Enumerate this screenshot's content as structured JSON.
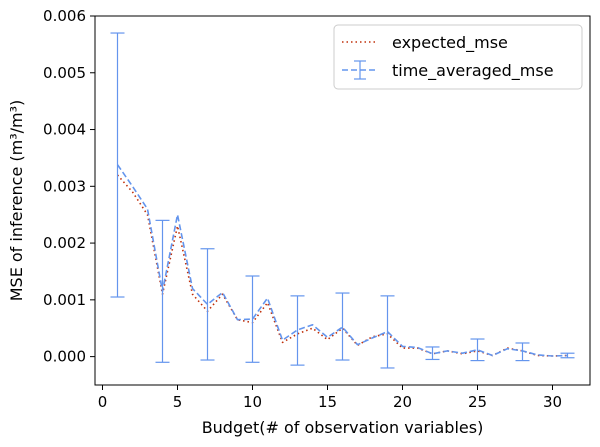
{
  "chart_data": {
    "type": "line",
    "xlabel": "Budget(# of observation variables)",
    "ylabel": "MSE of inference (m³/m³)",
    "xlim": [
      -0.5,
      32.5
    ],
    "ylim": [
      -0.0005,
      0.006
    ],
    "x_ticks": [
      0,
      5,
      10,
      15,
      20,
      25,
      30
    ],
    "x_tick_labels": [
      "0",
      "5",
      "10",
      "15",
      "20",
      "25",
      "30"
    ],
    "y_ticks": [
      0.0,
      0.001,
      0.002,
      0.003,
      0.004,
      0.005,
      0.006
    ],
    "y_tick_labels": [
      "0.000",
      "0.001",
      "0.002",
      "0.003",
      "0.004",
      "0.005",
      "0.006"
    ],
    "grid": false,
    "legend_position": "top-right",
    "x": [
      1,
      2,
      3,
      4,
      5,
      6,
      7,
      8,
      9,
      10,
      11,
      12,
      13,
      14,
      15,
      16,
      17,
      18,
      19,
      20,
      21,
      22,
      23,
      24,
      25,
      26,
      27,
      28,
      29,
      30,
      31
    ],
    "series": [
      {
        "name": "expected_mse",
        "style": "dotted",
        "color": "#c0300a",
        "values": [
          0.0032,
          0.0029,
          0.0025,
          0.0011,
          0.0023,
          0.0011,
          0.0008,
          0.0011,
          0.00065,
          0.0006,
          0.00095,
          0.00025,
          0.0004,
          0.0005,
          0.0003,
          0.0005,
          0.0002,
          0.00035,
          0.0004,
          0.00015,
          0.00015,
          5e-05,
          0.0001,
          5e-05,
          0.0001,
          2e-05,
          0.00015,
          0.0001,
          2e-05,
          1e-05,
          2e-05
        ]
      },
      {
        "name": "time_averaged_mse",
        "style": "dashed",
        "color": "#6495ed",
        "values": [
          0.00338,
          0.003,
          0.0026,
          0.00115,
          0.0025,
          0.0012,
          0.00092,
          0.00113,
          0.00065,
          0.00066,
          0.00103,
          0.00029,
          0.00047,
          0.00056,
          0.00034,
          0.00052,
          0.00021,
          0.00033,
          0.00044,
          0.00018,
          0.00016,
          5e-05,
          0.0001,
          6e-05,
          0.00012,
          2e-05,
          0.00014,
          0.0001,
          3e-05,
          1e-05,
          2e-05
        ],
        "error_bars": [
          {
            "x": 1,
            "low": 0.00105,
            "high": 0.0057
          },
          {
            "x": 4,
            "low": -0.0001,
            "high": 0.0024
          },
          {
            "x": 7,
            "low": -6e-05,
            "high": 0.0019
          },
          {
            "x": 10,
            "low": -0.0001,
            "high": 0.00142
          },
          {
            "x": 13,
            "low": -0.00015,
            "high": 0.00107
          },
          {
            "x": 16,
            "low": -6e-05,
            "high": 0.00112
          },
          {
            "x": 19,
            "low": -0.0002,
            "high": 0.00107
          },
          {
            "x": 22,
            "low": -5e-05,
            "high": 0.00017
          },
          {
            "x": 25,
            "low": -7e-05,
            "high": 0.00031
          },
          {
            "x": 28,
            "low": -7e-05,
            "high": 0.00024
          },
          {
            "x": 31,
            "low": -2e-05,
            "high": 6e-05
          }
        ]
      }
    ]
  }
}
